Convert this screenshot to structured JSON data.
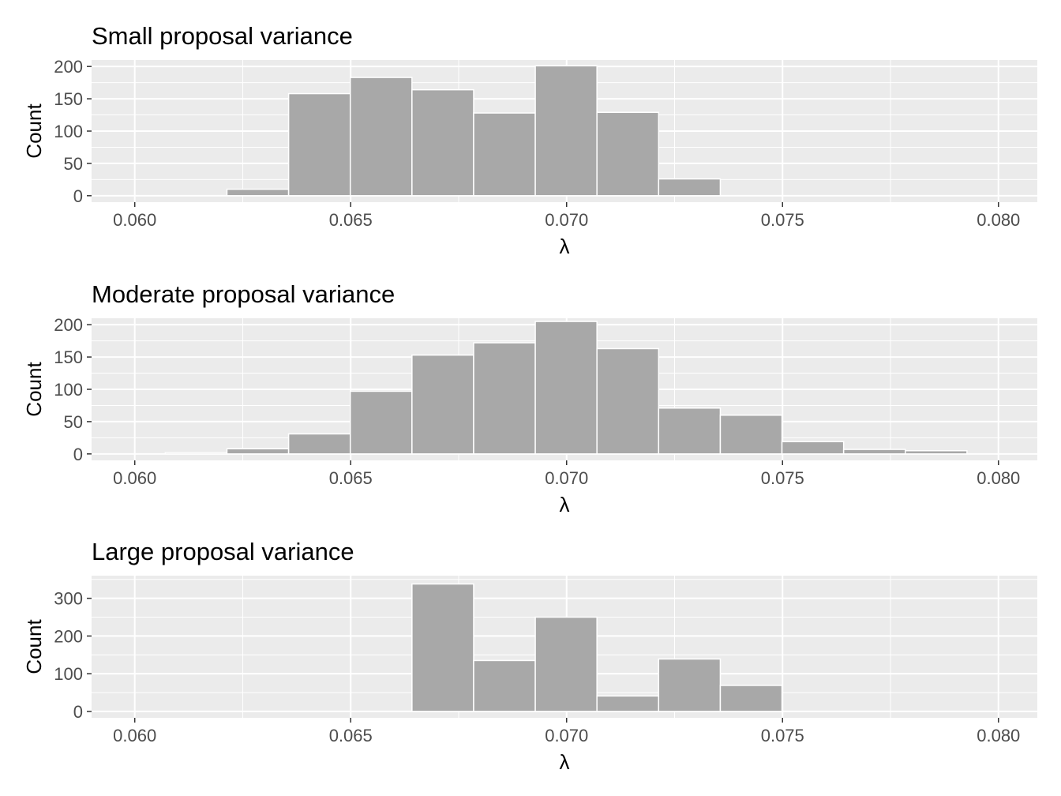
{
  "chart_data": [
    {
      "type": "bar",
      "subtype": "histogram",
      "title": "Small proposal variance",
      "xlabel": "λ",
      "ylabel": "Count",
      "xlim": [
        0.059,
        0.0809
      ],
      "ylim": [
        -10,
        210
      ],
      "xticks": [
        "0.060",
        "0.065",
        "0.070",
        "0.075",
        "0.080"
      ],
      "yticks": [
        "0",
        "50",
        "100",
        "150",
        "200"
      ],
      "bin_width": 0.001428,
      "bins": [
        {
          "x0": 0.062135,
          "x1": 0.063563,
          "count": 10
        },
        {
          "x0": 0.063563,
          "x1": 0.064991,
          "count": 158
        },
        {
          "x0": 0.064991,
          "x1": 0.066419,
          "count": 183
        },
        {
          "x0": 0.066419,
          "x1": 0.067847,
          "count": 164
        },
        {
          "x0": 0.067847,
          "x1": 0.069275,
          "count": 128
        },
        {
          "x0": 0.069275,
          "x1": 0.070703,
          "count": 201
        },
        {
          "x0": 0.070703,
          "x1": 0.072131,
          "count": 129
        },
        {
          "x0": 0.072131,
          "x1": 0.073559,
          "count": 26
        }
      ],
      "grid": true,
      "bar_color": "#a8a8a8"
    },
    {
      "type": "bar",
      "subtype": "histogram",
      "title": "Moderate proposal variance",
      "xlabel": "λ",
      "ylabel": "Count",
      "xlim": [
        0.059,
        0.0809
      ],
      "ylim": [
        -10,
        210
      ],
      "xticks": [
        "0.060",
        "0.065",
        "0.070",
        "0.075",
        "0.080"
      ],
      "yticks": [
        "0",
        "50",
        "100",
        "150",
        "200"
      ],
      "bin_width": 0.001428,
      "bins": [
        {
          "x0": 0.060707,
          "x1": 0.062135,
          "count": 2
        },
        {
          "x0": 0.062135,
          "x1": 0.063563,
          "count": 8
        },
        {
          "x0": 0.063563,
          "x1": 0.064991,
          "count": 31
        },
        {
          "x0": 0.064991,
          "x1": 0.066419,
          "count": 97
        },
        {
          "x0": 0.066419,
          "x1": 0.067847,
          "count": 153
        },
        {
          "x0": 0.067847,
          "x1": 0.069275,
          "count": 172
        },
        {
          "x0": 0.069275,
          "x1": 0.070703,
          "count": 205
        },
        {
          "x0": 0.070703,
          "x1": 0.072131,
          "count": 163
        },
        {
          "x0": 0.072131,
          "x1": 0.073559,
          "count": 71
        },
        {
          "x0": 0.073559,
          "x1": 0.074987,
          "count": 60
        },
        {
          "x0": 0.074987,
          "x1": 0.076415,
          "count": 19
        },
        {
          "x0": 0.076415,
          "x1": 0.077843,
          "count": 7
        },
        {
          "x0": 0.077843,
          "x1": 0.079271,
          "count": 5
        }
      ],
      "grid": true,
      "bar_color": "#a8a8a8"
    },
    {
      "type": "bar",
      "subtype": "histogram",
      "title": "Large proposal variance",
      "xlabel": "λ",
      "ylabel": "Count",
      "xlim": [
        0.059,
        0.0809
      ],
      "ylim": [
        -17,
        360
      ],
      "xticks": [
        "0.060",
        "0.065",
        "0.070",
        "0.075",
        "0.080"
      ],
      "yticks": [
        "0",
        "100",
        "200",
        "300"
      ],
      "bin_width": 0.001428,
      "bins": [
        {
          "x0": 0.066419,
          "x1": 0.067847,
          "count": 338
        },
        {
          "x0": 0.067847,
          "x1": 0.069275,
          "count": 135
        },
        {
          "x0": 0.069275,
          "x1": 0.070703,
          "count": 250
        },
        {
          "x0": 0.070703,
          "x1": 0.072131,
          "count": 41
        },
        {
          "x0": 0.072131,
          "x1": 0.073559,
          "count": 139
        },
        {
          "x0": 0.073559,
          "x1": 0.074987,
          "count": 69
        }
      ],
      "grid": true,
      "bar_color": "#a8a8a8"
    }
  ]
}
